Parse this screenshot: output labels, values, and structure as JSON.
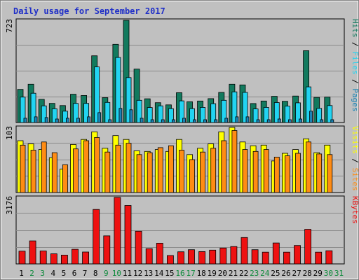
{
  "chart_data": {
    "type": "bar",
    "title": "Daily usage for September 2017",
    "days": [
      "1",
      "2",
      "3",
      "4",
      "5",
      "6",
      "7",
      "8",
      "9",
      "10",
      "11",
      "12",
      "13",
      "14",
      "15",
      "16",
      "17",
      "18",
      "19",
      "20",
      "21",
      "22",
      "23",
      "24",
      "25",
      "26",
      "27",
      "28",
      "29",
      "30",
      "31"
    ],
    "weekend_days": [
      "2",
      "3",
      "9",
      "10",
      "16",
      "17",
      "23",
      "24",
      "30",
      "31"
    ],
    "colors": {
      "hits": "#127a5e",
      "files": "#22d4f2",
      "pages": "#1b84b6",
      "visits": "#ffff00",
      "sites": "#ff8c14",
      "kbytes": "#ee1111",
      "weekday_label": "#000000",
      "weekend_label": "#0c8a3a",
      "title": "#1f2fc8"
    },
    "panels": [
      {
        "name": "hits-files-pages",
        "ymax_label": "723",
        "side_labels": [
          {
            "text": "Pages",
            "color": "#1b84b6"
          },
          {
            "text": " / ",
            "color": "#000000"
          },
          {
            "text": "Files",
            "color": "#22d4f2"
          },
          {
            "text": " / ",
            "color": "#000000"
          },
          {
            "text": "Hits",
            "color": "#127a5e"
          }
        ],
        "ymax": 723,
        "series": [
          {
            "key": "hits",
            "values": [
              234,
              271,
              164,
              135,
              120,
              200,
              191,
              472,
              176,
              553,
              723,
              378,
              168,
              140,
              125,
              211,
              147,
              152,
              169,
              213,
              271,
              266,
              134,
              152,
              185,
              150,
              187,
              508,
              178,
              180
            ]
          },
          {
            "key": "files",
            "values": [
              180,
              207,
              118,
              97,
              80,
              135,
              135,
              393,
              142,
              460,
              318,
              157,
              106,
              118,
              98,
              153,
              98,
              107,
              133,
              157,
              217,
              213,
              96,
              107,
              141,
              116,
              139,
              252,
              100,
              120
            ]
          },
          {
            "key": "pages",
            "values": [
              30,
              40,
              35,
              25,
              30,
              30,
              40,
              70,
              20,
              100,
              90,
              30,
              20,
              20,
              20,
              30,
              20,
              20,
              20,
              30,
              40,
              40,
              20,
              20,
              25,
              20,
              25,
              80,
              20,
              20
            ]
          }
        ]
      },
      {
        "name": "visits-sites",
        "ymax_label": "103",
        "side_labels": [
          {
            "text": "Sites",
            "color": "#ff8c14"
          },
          {
            "text": " / ",
            "color": "#000000"
          },
          {
            "text": "Visits",
            "color": "#ffff00"
          }
        ],
        "ymax": 103,
        "series": [
          {
            "key": "visits",
            "values": [
              82,
              77,
              68,
              55,
              37,
              76,
              84,
              96,
              70,
              90,
              84,
              66,
              65,
              68,
              65,
              84,
              60,
              70,
              77,
              96,
              103,
              80,
              74,
              75,
              50,
              62,
              68,
              85,
              63,
              75
            ]
          },
          {
            "key": "sites",
            "values": [
              75,
              67,
              80,
              63,
              44,
              69,
              82,
              87,
              64,
              75,
              78,
              60,
              63,
              71,
              74,
              67,
              52,
              64,
              70,
              82,
              98,
              68,
              65,
              68,
              56,
              58,
              62,
              80,
              61,
              60
            ]
          }
        ]
      },
      {
        "name": "kbytes",
        "ymax_label": "3176",
        "side_labels": [
          {
            "text": "KBytes",
            "color": "#ee1111"
          }
        ],
        "ymax": 3176,
        "series": [
          {
            "key": "kbytes",
            "values": [
              610,
              1100,
              620,
              480,
              420,
              700,
              570,
              2600,
              1340,
              3176,
              2790,
              1560,
              730,
              990,
              400,
              580,
              680,
              590,
              660,
              760,
              830,
              1260,
              680,
              560,
              1000,
              560,
              880,
              1650,
              560,
              630
            ]
          }
        ]
      }
    ]
  }
}
